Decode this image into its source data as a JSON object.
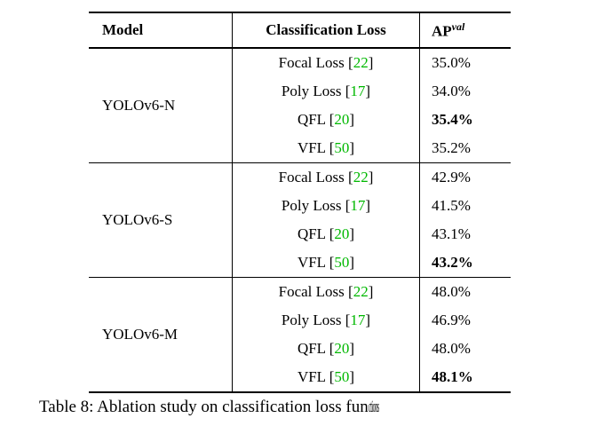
{
  "table": {
    "header": {
      "model": "Model",
      "loss": "Classification Loss",
      "ap_base": "AP",
      "ap_sup": "val"
    },
    "citation_color": "#00b800",
    "groups": [
      {
        "model": "YOLOv6-N",
        "rows": [
          {
            "loss": "Focal Loss ",
            "cite": "22",
            "ap": "35.0%",
            "best": false
          },
          {
            "loss": "Poly Loss ",
            "cite": "17",
            "ap": "34.0%",
            "best": false
          },
          {
            "loss": "QFL ",
            "cite": "20",
            "ap": "35.4%",
            "best": true
          },
          {
            "loss": "VFL ",
            "cite": "50",
            "ap": "35.2%",
            "best": false
          }
        ]
      },
      {
        "model": "YOLOv6-S",
        "rows": [
          {
            "loss": "Focal Loss ",
            "cite": "22",
            "ap": "42.9%",
            "best": false
          },
          {
            "loss": "Poly Loss ",
            "cite": "17",
            "ap": "41.5%",
            "best": false
          },
          {
            "loss": "QFL ",
            "cite": "20",
            "ap": "43.1%",
            "best": false
          },
          {
            "loss": "VFL ",
            "cite": "50",
            "ap": "43.2%",
            "best": true
          }
        ]
      },
      {
        "model": "YOLOv6-M",
        "rows": [
          {
            "loss": "Focal Loss ",
            "cite": "22",
            "ap": "48.0%",
            "best": false
          },
          {
            "loss": "Poly Loss ",
            "cite": "17",
            "ap": "46.9%",
            "best": false
          },
          {
            "loss": "QFL ",
            "cite": "20",
            "ap": "48.0%",
            "best": false
          },
          {
            "loss": "VFL ",
            "cite": "50",
            "ap": "48.1%",
            "best": true
          }
        ]
      }
    ]
  },
  "caption": {
    "text": "Table 8: Ablation study on classification loss fun",
    "truncated_tail": "ctions"
  }
}
